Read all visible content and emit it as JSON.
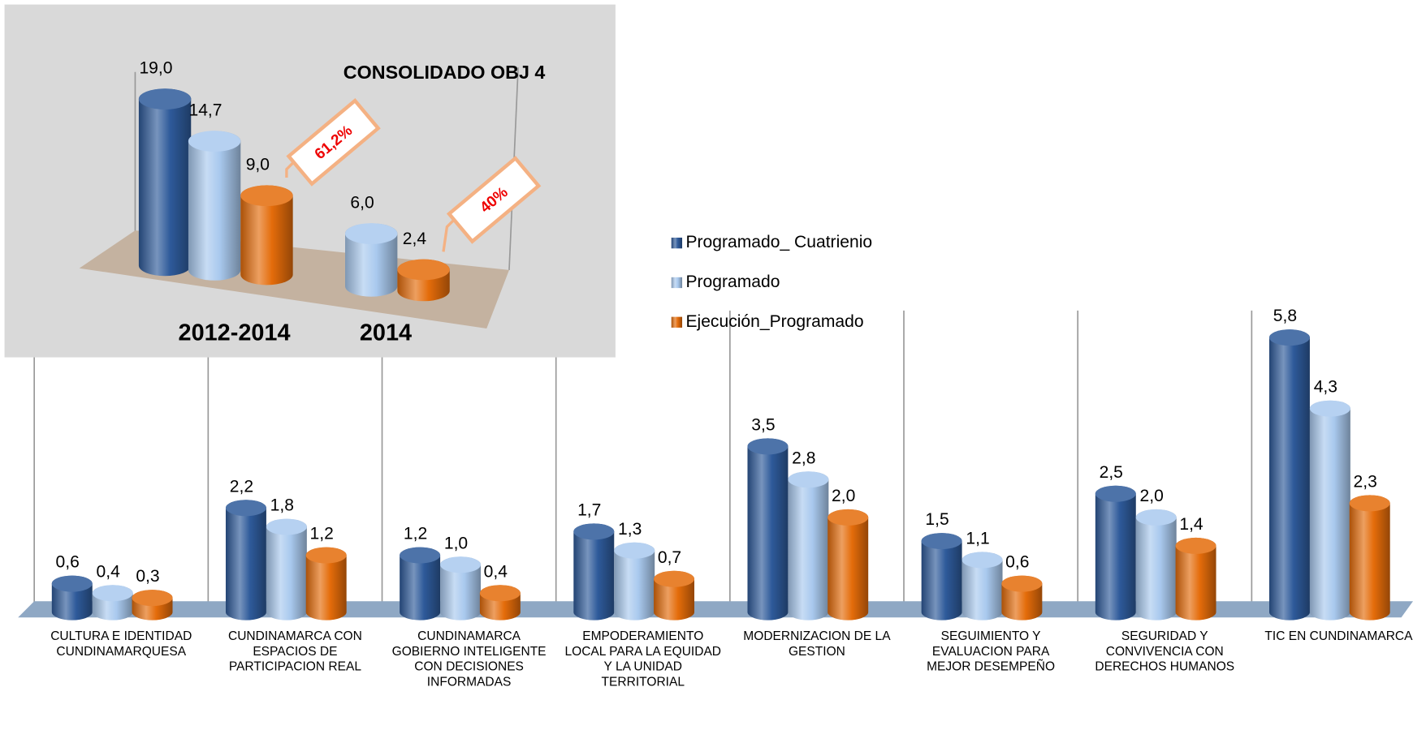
{
  "chart_data": [
    {
      "type": "bar",
      "categories": [
        "CULTURA E IDENTIDAD CUNDINAMARQUESA",
        "CUNDINAMARCA CON ESPACIOS DE PARTICIPACION REAL",
        "CUNDINAMARCA GOBIERNO INTELIGENTE CON DECISIONES INFORMADAS",
        "EMPODERAMIENTO LOCAL PARA LA EQUIDAD Y LA UNIDAD TERRITORIAL",
        "MODERNIZACION DE LA GESTION",
        "SEGUIMIENTO Y EVALUACION PARA MEJOR DESEMPEÑO",
        "SEGURIDAD Y CONVIVENCIA CON DERECHOS HUMANOS",
        "TIC EN CUNDINAMARCA"
      ],
      "series": [
        {
          "name": "Programado_ Cuatrienio",
          "color": "#2e5a9a",
          "values": [
            0.6,
            2.2,
            1.2,
            1.7,
            3.5,
            1.5,
            2.5,
            5.8
          ],
          "value_labels": [
            "0,6",
            "2,2",
            "1,2",
            "1,7",
            "3,5",
            "1,5",
            "2,5",
            "5,8"
          ]
        },
        {
          "name": "Programado",
          "color": "#a9c9ee",
          "values": [
            0.4,
            1.8,
            1.0,
            1.3,
            2.8,
            1.1,
            2.0,
            4.3
          ],
          "value_labels": [
            "0,4",
            "1,8",
            "1,0",
            "1,3",
            "2,8",
            "1,1",
            "2,0",
            "4,3"
          ]
        },
        {
          "name": "Ejecución_Programado",
          "color": "#e46c0a",
          "values": [
            0.3,
            1.2,
            0.4,
            0.7,
            2.0,
            0.6,
            1.4,
            2.3
          ],
          "value_labels": [
            "0,3",
            "1,2",
            "0,4",
            "0,7",
            "2,0",
            "0,6",
            "1,4",
            "2,3"
          ]
        }
      ]
    },
    {
      "type": "bar",
      "title": "CONSOLIDADO OBJ 4",
      "categories": [
        "2012-2014",
        "2014"
      ],
      "series": [
        {
          "color": "#2e5a9a",
          "values": [
            19.0,
            null
          ],
          "value_labels": [
            "19,0",
            null
          ]
        },
        {
          "color": "#a9c9ee",
          "values": [
            14.7,
            6.0
          ],
          "value_labels": [
            "14,7",
            "6,0"
          ]
        },
        {
          "color": "#e46c0a",
          "values": [
            9.0,
            2.4
          ],
          "value_labels": [
            "9,0",
            "2,4"
          ]
        }
      ],
      "annotations": [
        "61,2%",
        "40%"
      ]
    }
  ]
}
